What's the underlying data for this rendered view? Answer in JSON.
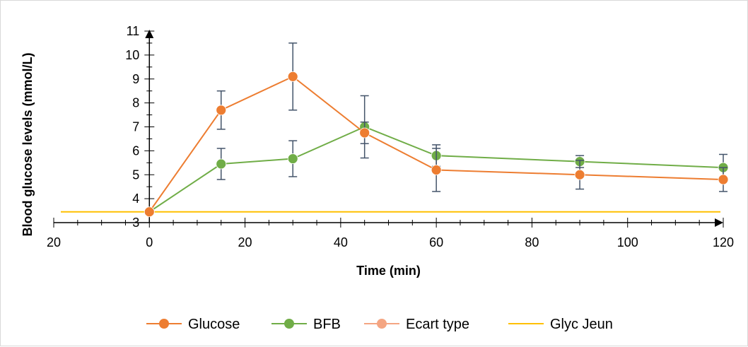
{
  "chart_data": {
    "type": "line",
    "xlabel": "Time (min)",
    "ylabel": "Blood glucose levels (mmol/L)",
    "xlim": [
      -20,
      120
    ],
    "ylim": [
      3,
      11
    ],
    "x_ticks": [
      -20,
      0,
      20,
      40,
      60,
      80,
      100,
      120
    ],
    "x_tick_labels": [
      "20",
      "0",
      "20",
      "40",
      "60",
      "80",
      "100",
      "120"
    ],
    "y_ticks": [
      3,
      4,
      5,
      6,
      7,
      8,
      9,
      10,
      11
    ],
    "grid": false,
    "legend_position": "bottom",
    "series": [
      {
        "name": "Glucose",
        "color": "#ED7D31",
        "x": [
          0,
          15,
          30,
          45,
          60,
          90,
          120
        ],
        "y": [
          3.45,
          7.7,
          9.1,
          6.75,
          5.2,
          5.0,
          4.8
        ],
        "error": [
          0.1,
          0.8,
          1.4,
          0.45,
          0.9,
          0.6,
          0.5
        ]
      },
      {
        "name": "BFB",
        "color": "#70AD47",
        "x": [
          0,
          15,
          30,
          45,
          60,
          90,
          120
        ],
        "y": [
          3.45,
          5.45,
          5.67,
          7.0,
          5.8,
          5.55,
          5.3
        ],
        "error": [
          0.1,
          0.65,
          0.75,
          1.3,
          0.45,
          0.25,
          0.55
        ]
      },
      {
        "name": "Ecart type",
        "color": "#F4A582",
        "x": [],
        "y": []
      },
      {
        "name": "Glyc Jeun",
        "color": "#FFC000",
        "x": [
          -20,
          120
        ],
        "y": [
          3.45,
          3.45
        ]
      }
    ]
  }
}
